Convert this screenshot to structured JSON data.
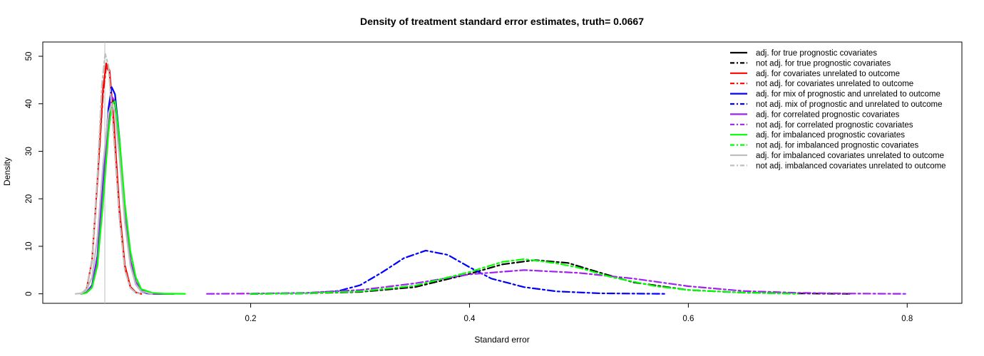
{
  "chart_data": {
    "type": "line",
    "title": "Density of treatment standard error estimates, truth= 0.0667",
    "xlabel": "Standard error",
    "ylabel": "Density",
    "xlim": [
      0.01,
      0.85
    ],
    "ylim": [
      -2,
      53
    ],
    "xticks": [
      0.2,
      0.4,
      0.6,
      0.8
    ],
    "xtick_labels": [
      "0.2",
      "0.4",
      "0.6",
      "0.8"
    ],
    "yticks": [
      0,
      10,
      20,
      30,
      40,
      50
    ],
    "ytick_labels": [
      "0",
      "10",
      "20",
      "30",
      "40",
      "50"
    ],
    "grid": false,
    "legend_position": "top-right",
    "reference_line": {
      "x": 0.0667,
      "color": "#bebebe"
    },
    "series": [
      {
        "name": "adj. for true prognostic covariates",
        "color": "#000000",
        "dash": "solid",
        "points": [
          [
            0.045,
            0
          ],
          [
            0.05,
            0.3
          ],
          [
            0.055,
            1.5
          ],
          [
            0.06,
            7
          ],
          [
            0.065,
            20
          ],
          [
            0.07,
            35
          ],
          [
            0.073,
            41
          ],
          [
            0.076,
            40
          ],
          [
            0.08,
            32
          ],
          [
            0.085,
            17
          ],
          [
            0.09,
            7
          ],
          [
            0.095,
            2.5
          ],
          [
            0.1,
            0.7
          ],
          [
            0.105,
            0.2
          ],
          [
            0.11,
            0
          ],
          [
            0.13,
            0
          ]
        ]
      },
      {
        "name": "not adj. for true prognostic covariates",
        "color": "#000000",
        "dash": "dashdot",
        "points": [
          [
            0.2,
            0
          ],
          [
            0.25,
            0.1
          ],
          [
            0.3,
            0.4
          ],
          [
            0.35,
            1.4
          ],
          [
            0.4,
            4.2
          ],
          [
            0.43,
            6.2
          ],
          [
            0.46,
            7.1
          ],
          [
            0.49,
            6.5
          ],
          [
            0.52,
            4.4
          ],
          [
            0.55,
            2.4
          ],
          [
            0.6,
            0.8
          ],
          [
            0.65,
            0.25
          ],
          [
            0.7,
            0.08
          ],
          [
            0.75,
            0
          ]
        ]
      },
      {
        "name": "adj. for covariates unrelated to outcome",
        "color": "#ff0000",
        "dash": "solid",
        "points": [
          [
            0.045,
            0
          ],
          [
            0.05,
            1
          ],
          [
            0.055,
            7
          ],
          [
            0.06,
            24
          ],
          [
            0.065,
            43
          ],
          [
            0.068,
            48.5
          ],
          [
            0.071,
            47
          ],
          [
            0.075,
            36
          ],
          [
            0.08,
            18
          ],
          [
            0.085,
            6
          ],
          [
            0.09,
            1.5
          ],
          [
            0.095,
            0.3
          ],
          [
            0.1,
            0
          ]
        ]
      },
      {
        "name": "not adj. for covariates unrelated to outcome",
        "color": "#ff0000",
        "dash": "dashdot",
        "points": [
          [
            0.045,
            0
          ],
          [
            0.05,
            1
          ],
          [
            0.055,
            7
          ],
          [
            0.06,
            24
          ],
          [
            0.065,
            42
          ],
          [
            0.068,
            48
          ],
          [
            0.071,
            46.5
          ],
          [
            0.075,
            35
          ],
          [
            0.08,
            17
          ],
          [
            0.085,
            5.5
          ],
          [
            0.09,
            1.4
          ],
          [
            0.095,
            0.3
          ],
          [
            0.1,
            0
          ]
        ]
      },
      {
        "name": "adj. for mix of prognostic and unrelated to outcome",
        "color": "#0000ff",
        "dash": "solid",
        "points": [
          [
            0.045,
            0
          ],
          [
            0.05,
            0.3
          ],
          [
            0.055,
            1.8
          ],
          [
            0.06,
            8
          ],
          [
            0.065,
            24
          ],
          [
            0.07,
            39
          ],
          [
            0.073,
            43.5
          ],
          [
            0.076,
            42
          ],
          [
            0.08,
            33
          ],
          [
            0.085,
            17
          ],
          [
            0.09,
            6.5
          ],
          [
            0.095,
            2
          ],
          [
            0.1,
            0.5
          ],
          [
            0.105,
            0.1
          ],
          [
            0.11,
            0
          ],
          [
            0.12,
            0
          ]
        ]
      },
      {
        "name": "not adj. mix of prognostic and unrelated to outcome",
        "color": "#0000ff",
        "dash": "dashdot",
        "points": [
          [
            0.2,
            0
          ],
          [
            0.25,
            0.1
          ],
          [
            0.28,
            0.6
          ],
          [
            0.3,
            1.8
          ],
          [
            0.32,
            4.5
          ],
          [
            0.34,
            7.5
          ],
          [
            0.36,
            9.1
          ],
          [
            0.38,
            8.2
          ],
          [
            0.4,
            5.6
          ],
          [
            0.42,
            3.2
          ],
          [
            0.45,
            1.4
          ],
          [
            0.48,
            0.5
          ],
          [
            0.52,
            0.1
          ],
          [
            0.58,
            0
          ]
        ]
      },
      {
        "name": "adj. for correlated prognostic covariates",
        "color": "#a020f0",
        "dash": "solid",
        "points": [
          [
            0.045,
            0
          ],
          [
            0.05,
            0.3
          ],
          [
            0.055,
            1.6
          ],
          [
            0.06,
            7.5
          ],
          [
            0.065,
            22
          ],
          [
            0.07,
            37
          ],
          [
            0.073,
            41.5
          ],
          [
            0.076,
            40.5
          ],
          [
            0.08,
            32
          ],
          [
            0.085,
            17
          ],
          [
            0.09,
            7
          ],
          [
            0.095,
            2.5
          ],
          [
            0.1,
            0.7
          ],
          [
            0.105,
            0.2
          ],
          [
            0.11,
            0
          ],
          [
            0.12,
            0
          ]
        ]
      },
      {
        "name": "not adj. for correlated prognostic covariates",
        "color": "#a020f0",
        "dash": "dashdot",
        "points": [
          [
            0.16,
            0
          ],
          [
            0.2,
            0.05
          ],
          [
            0.25,
            0.2
          ],
          [
            0.3,
            0.8
          ],
          [
            0.35,
            2.2
          ],
          [
            0.4,
            4.1
          ],
          [
            0.45,
            5
          ],
          [
            0.5,
            4.4
          ],
          [
            0.55,
            3.2
          ],
          [
            0.6,
            1.6
          ],
          [
            0.65,
            0.6
          ],
          [
            0.7,
            0.2
          ],
          [
            0.75,
            0.05
          ],
          [
            0.8,
            0
          ]
        ]
      },
      {
        "name": "adj. for imbalanced prognostic covariates",
        "color": "#00ff00",
        "dash": "solid",
        "points": [
          [
            0.045,
            0
          ],
          [
            0.05,
            0.2
          ],
          [
            0.055,
            1.3
          ],
          [
            0.06,
            6
          ],
          [
            0.065,
            19
          ],
          [
            0.07,
            34
          ],
          [
            0.073,
            40
          ],
          [
            0.076,
            40.5
          ],
          [
            0.08,
            33
          ],
          [
            0.085,
            19
          ],
          [
            0.09,
            9
          ],
          [
            0.095,
            3.5
          ],
          [
            0.1,
            1
          ],
          [
            0.11,
            0.2
          ],
          [
            0.12,
            0.05
          ],
          [
            0.14,
            0
          ]
        ]
      },
      {
        "name": "not adj. for imbalanced prognostic covariates",
        "color": "#00ff00",
        "dash": "dashdot",
        "points": [
          [
            0.2,
            0
          ],
          [
            0.25,
            0.1
          ],
          [
            0.3,
            0.5
          ],
          [
            0.35,
            1.7
          ],
          [
            0.4,
            4.6
          ],
          [
            0.43,
            6.7
          ],
          [
            0.45,
            7.3
          ],
          [
            0.48,
            6.4
          ],
          [
            0.5,
            5.5
          ],
          [
            0.53,
            3.5
          ],
          [
            0.57,
            1.6
          ],
          [
            0.6,
            0.8
          ],
          [
            0.65,
            0.25
          ],
          [
            0.7,
            0
          ]
        ]
      },
      {
        "name": "adj. for imbalanced covariates unrelated to outcome",
        "color": "#bebebe",
        "dash": "solid",
        "points": [
          [
            0.04,
            0
          ],
          [
            0.045,
            0.1
          ],
          [
            0.05,
            0.8
          ],
          [
            0.055,
            3.5
          ],
          [
            0.06,
            12
          ],
          [
            0.065,
            27
          ],
          [
            0.07,
            38
          ],
          [
            0.073,
            40
          ],
          [
            0.076,
            38
          ],
          [
            0.08,
            29
          ],
          [
            0.085,
            15
          ],
          [
            0.09,
            6
          ],
          [
            0.095,
            2
          ],
          [
            0.1,
            0.5
          ],
          [
            0.11,
            0
          ]
        ]
      },
      {
        "name": "not adj. imbalanced covariates unrelated to outcome",
        "color": "#bebebe",
        "dash": "dashdot",
        "points": [
          [
            0.045,
            0
          ],
          [
            0.05,
            1
          ],
          [
            0.055,
            7
          ],
          [
            0.06,
            25
          ],
          [
            0.064,
            44
          ],
          [
            0.067,
            50.5
          ],
          [
            0.07,
            48
          ],
          [
            0.074,
            36
          ],
          [
            0.08,
            16
          ],
          [
            0.085,
            5
          ],
          [
            0.09,
            1.2
          ],
          [
            0.095,
            0.2
          ],
          [
            0.1,
            0
          ]
        ]
      }
    ]
  }
}
